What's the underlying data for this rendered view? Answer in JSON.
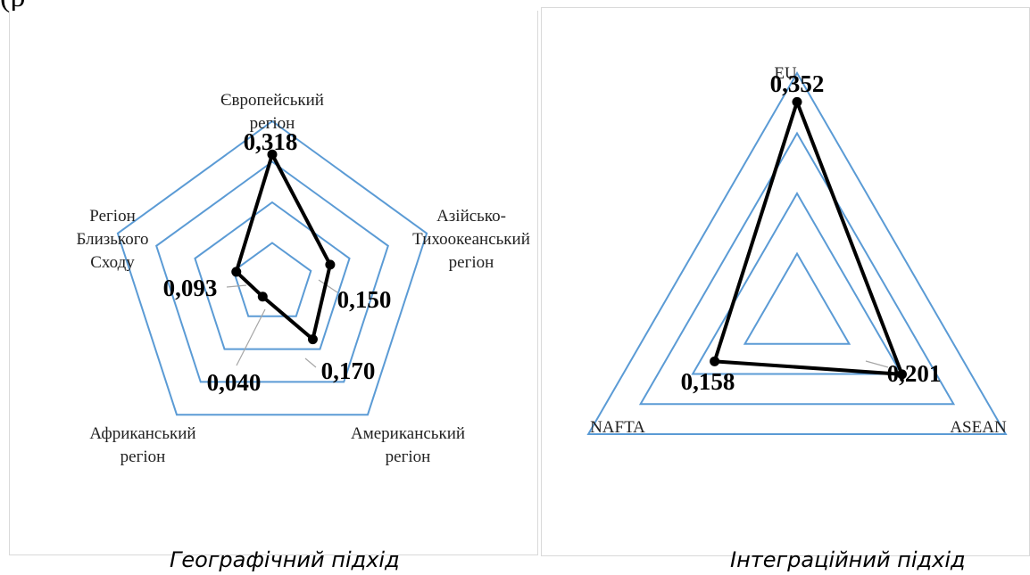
{
  "page": {
    "top_fragment": "(р"
  },
  "chart_data": [
    {
      "type": "radar",
      "caption": "Географічний підхід",
      "categories": [
        {
          "lines": [
            "Європейський",
            "регіон"
          ]
        },
        {
          "lines": [
            "Азійсько-",
            "Тихоокеанський",
            "регіон"
          ]
        },
        {
          "lines": [
            "Американський",
            "регіон"
          ]
        },
        {
          "lines": [
            "Африканський",
            "регіон"
          ]
        },
        {
          "lines": [
            "Регіон",
            "Близького",
            "Сходу"
          ]
        }
      ],
      "values": [
        0.318,
        0.15,
        0.17,
        0.04,
        0.093
      ],
      "value_labels": [
        "0,318",
        "0,150",
        "0,170",
        "0,040",
        "0,093"
      ],
      "rmax": 0.4,
      "gridlines": 4
    },
    {
      "type": "radar",
      "caption": "Інтеграційний підхід",
      "categories": [
        {
          "lines": [
            "EU"
          ]
        },
        {
          "lines": [
            "ASEAN"
          ]
        },
        {
          "lines": [
            "NAFTA"
          ]
        }
      ],
      "values": [
        0.352,
        0.201,
        0.158
      ],
      "value_labels": [
        "0,352",
        "0,201",
        "0,158"
      ],
      "rmax": 0.4,
      "gridlines": 4
    }
  ],
  "colors": {
    "grid": "#5b9bd5",
    "series": "#000000",
    "leader": "#a6a6a6"
  }
}
